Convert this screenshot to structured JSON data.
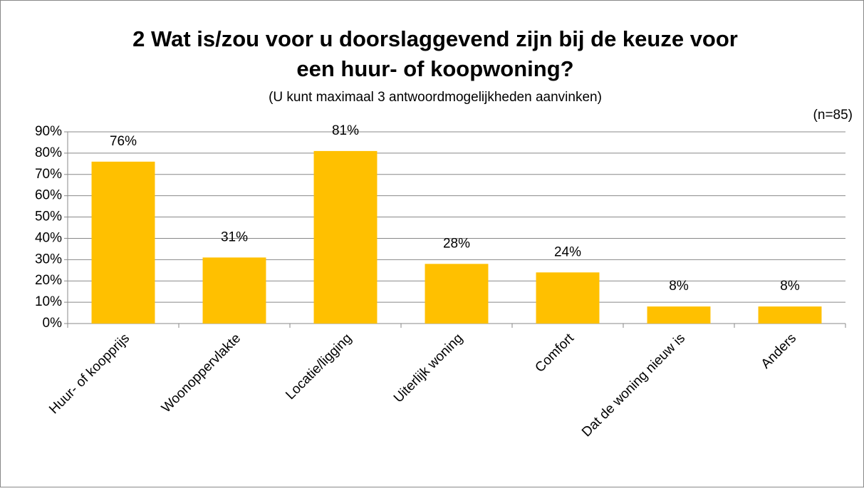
{
  "chart_data": {
    "type": "bar",
    "title": [
      "2 Wat is/zou voor u doorslaggevend zijn bij de keuze voor",
      "een huur- of koopwoning?"
    ],
    "subtitle": "(U kunt maximaal 3 antwoordmogelijkheden aanvinken)",
    "annotation": "(n=85)",
    "categories": [
      "Huur- of koopprijs",
      "Woonoppervlakte",
      "Locatie/ligging",
      "Uiterlijk woning",
      "Comfort",
      "Dat de woning nieuw is",
      "Anders"
    ],
    "values": [
      76,
      31,
      81,
      28,
      24,
      8,
      8
    ],
    "value_labels": [
      "76%",
      "31%",
      "81%",
      "28%",
      "24%",
      "8%",
      "8%"
    ],
    "color": "#ffc000",
    "ylim": [
      0,
      90
    ],
    "yticks": [
      {
        "value": 0,
        "label": "0%"
      },
      {
        "value": 10,
        "label": "10%"
      },
      {
        "value": 20,
        "label": "20%"
      },
      {
        "value": 30,
        "label": "30%"
      },
      {
        "value": 40,
        "label": "40%"
      },
      {
        "value": 50,
        "label": "50%"
      },
      {
        "value": 60,
        "label": "60%"
      },
      {
        "value": 70,
        "label": "70%"
      },
      {
        "value": 80,
        "label": "80%"
      },
      {
        "value": 90,
        "label": "90%"
      }
    ],
    "grid": true
  }
}
